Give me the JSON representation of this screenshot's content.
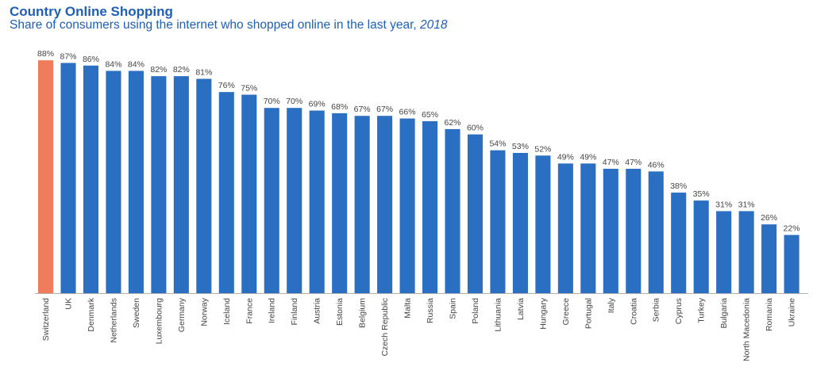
{
  "header": {
    "title": "Country Online Shopping",
    "subtitle": "Share of consumers using the internet who shopped online in the last year, ",
    "subtitle_year": "2018"
  },
  "colors": {
    "highlight": "#ef7c5b",
    "bar": "#2b6fc2",
    "axis": "#b0b0b0",
    "title": "#1f5fb4"
  },
  "chart_data": {
    "type": "bar",
    "title": "Country Online Shopping",
    "subtitle": "Share of consumers using the internet who shopped online in the last year, 2018",
    "xlabel": "",
    "ylabel": "",
    "ylim": [
      0,
      100
    ],
    "value_suffix": "%",
    "grid": false,
    "highlighted_category": "Switzerland",
    "categories": [
      "Switzerland",
      "UK",
      "Denmark",
      "Netherlands",
      "Sweden",
      "Luxembourg",
      "Germany",
      "Norway",
      "Iceland",
      "France",
      "Ireland",
      "Finland",
      "Austria",
      "Estonia",
      "Belgium",
      "Czech Republic",
      "Malta",
      "Russia",
      "Spain",
      "Poland",
      "Lithuania",
      "Latvia",
      "Hungary",
      "Greece",
      "Portugal",
      "Italy",
      "Croatia",
      "Serbia",
      "Cyprus",
      "Turkey",
      "Bulgaria",
      "North Macedonia",
      "Romania",
      "Ukraine"
    ],
    "values": [
      88,
      87,
      86,
      84,
      84,
      82,
      82,
      81,
      76,
      75,
      70,
      70,
      69,
      68,
      67,
      67,
      66,
      65,
      62,
      60,
      54,
      53,
      52,
      49,
      49,
      47,
      47,
      46,
      38,
      35,
      31,
      31,
      26,
      22
    ]
  }
}
